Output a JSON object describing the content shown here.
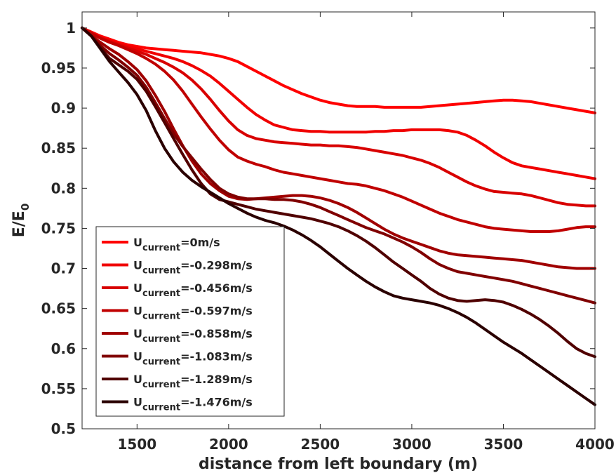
{
  "chart_data": {
    "type": "line",
    "xlabel": "distance from left boundary (m)",
    "ylabel": {
      "main": "E/E",
      "sub": "0"
    },
    "xlim": [
      1200,
      4000
    ],
    "ylim": [
      0.5,
      1.02
    ],
    "xticks": [
      1500,
      2000,
      2500,
      3000,
      3500,
      4000
    ],
    "yticks": [
      0.5,
      0.55,
      0.6,
      0.65,
      0.7,
      0.75,
      0.8,
      0.85,
      0.9,
      0.95,
      1
    ],
    "ytick_labels": [
      "0.5",
      "0.55",
      "0.6",
      "0.65",
      "0.7",
      "0.75",
      "0.8",
      "0.85",
      "0.9",
      "0.95",
      "1"
    ],
    "grid": false,
    "legend_position": "bottom-left",
    "x": [
      1200,
      1250,
      1300,
      1350,
      1400,
      1450,
      1500,
      1550,
      1600,
      1650,
      1700,
      1750,
      1800,
      1850,
      1900,
      1950,
      2000,
      2050,
      2100,
      2150,
      2200,
      2250,
      2300,
      2350,
      2400,
      2450,
      2500,
      2550,
      2600,
      2650,
      2700,
      2750,
      2800,
      2850,
      2900,
      2950,
      3000,
      3050,
      3100,
      3150,
      3200,
      3250,
      3300,
      3350,
      3400,
      3450,
      3500,
      3550,
      3600,
      3650,
      3700,
      3750,
      3800,
      3850,
      3900,
      3950,
      4000
    ],
    "series": [
      {
        "name": {
          "sym": "U",
          "sub": "current",
          "val": "=0m/s"
        },
        "color": "#ff0000",
        "values": [
          1.0,
          0.995,
          0.99,
          0.986,
          0.982,
          0.979,
          0.977,
          0.975,
          0.974,
          0.973,
          0.972,
          0.971,
          0.97,
          0.969,
          0.967,
          0.965,
          0.962,
          0.958,
          0.952,
          0.946,
          0.94,
          0.934,
          0.928,
          0.923,
          0.918,
          0.914,
          0.91,
          0.907,
          0.905,
          0.903,
          0.902,
          0.902,
          0.902,
          0.901,
          0.901,
          0.901,
          0.901,
          0.901,
          0.902,
          0.903,
          0.904,
          0.905,
          0.906,
          0.907,
          0.908,
          0.909,
          0.91,
          0.91,
          0.909,
          0.908,
          0.906,
          0.904,
          0.902,
          0.9,
          0.898,
          0.896,
          0.894
        ]
      },
      {
        "name": {
          "sym": "U",
          "sub": "current",
          "val": "=-0.298m/s"
        },
        "color": "#f00000",
        "values": [
          1.0,
          0.994,
          0.988,
          0.984,
          0.98,
          0.977,
          0.974,
          0.971,
          0.968,
          0.965,
          0.962,
          0.958,
          0.953,
          0.947,
          0.94,
          0.931,
          0.921,
          0.911,
          0.901,
          0.892,
          0.885,
          0.879,
          0.876,
          0.873,
          0.872,
          0.871,
          0.871,
          0.87,
          0.87,
          0.87,
          0.87,
          0.87,
          0.871,
          0.871,
          0.872,
          0.872,
          0.873,
          0.873,
          0.873,
          0.873,
          0.872,
          0.87,
          0.866,
          0.86,
          0.853,
          0.845,
          0.838,
          0.832,
          0.828,
          0.826,
          0.824,
          0.822,
          0.82,
          0.818,
          0.816,
          0.814,
          0.812
        ]
      },
      {
        "name": {
          "sym": "U",
          "sub": "current",
          "val": "=-0.456m/s"
        },
        "color": "#d80000",
        "values": [
          1.0,
          0.994,
          0.988,
          0.983,
          0.979,
          0.975,
          0.971,
          0.967,
          0.962,
          0.957,
          0.951,
          0.944,
          0.935,
          0.924,
          0.911,
          0.897,
          0.884,
          0.873,
          0.866,
          0.862,
          0.86,
          0.858,
          0.857,
          0.856,
          0.855,
          0.854,
          0.854,
          0.853,
          0.853,
          0.852,
          0.851,
          0.849,
          0.847,
          0.845,
          0.843,
          0.841,
          0.838,
          0.835,
          0.831,
          0.826,
          0.82,
          0.814,
          0.808,
          0.803,
          0.799,
          0.796,
          0.795,
          0.794,
          0.793,
          0.791,
          0.788,
          0.785,
          0.782,
          0.78,
          0.779,
          0.778,
          0.778
        ]
      },
      {
        "name": {
          "sym": "U",
          "sub": "current",
          "val": "=-0.597m/s"
        },
        "color": "#c00000",
        "values": [
          1.0,
          0.993,
          0.987,
          0.982,
          0.978,
          0.973,
          0.968,
          0.962,
          0.955,
          0.946,
          0.935,
          0.921,
          0.905,
          0.889,
          0.874,
          0.86,
          0.848,
          0.839,
          0.834,
          0.83,
          0.827,
          0.823,
          0.82,
          0.818,
          0.816,
          0.814,
          0.812,
          0.81,
          0.808,
          0.806,
          0.805,
          0.803,
          0.8,
          0.797,
          0.793,
          0.789,
          0.784,
          0.779,
          0.774,
          0.769,
          0.765,
          0.761,
          0.758,
          0.755,
          0.752,
          0.75,
          0.749,
          0.748,
          0.747,
          0.746,
          0.746,
          0.746,
          0.747,
          0.749,
          0.751,
          0.752,
          0.752
        ]
      },
      {
        "name": {
          "sym": "U",
          "sub": "current",
          "val": "=-0.858m/s"
        },
        "color": "#a00000",
        "values": [
          1.0,
          0.99,
          0.982,
          0.974,
          0.967,
          0.958,
          0.948,
          0.934,
          0.916,
          0.896,
          0.874,
          0.853,
          0.834,
          0.818,
          0.806,
          0.797,
          0.79,
          0.787,
          0.786,
          0.787,
          0.788,
          0.789,
          0.79,
          0.791,
          0.791,
          0.79,
          0.788,
          0.785,
          0.781,
          0.776,
          0.77,
          0.763,
          0.756,
          0.749,
          0.743,
          0.738,
          0.734,
          0.73,
          0.726,
          0.722,
          0.719,
          0.717,
          0.716,
          0.715,
          0.714,
          0.713,
          0.712,
          0.711,
          0.71,
          0.708,
          0.706,
          0.704,
          0.702,
          0.701,
          0.7,
          0.7,
          0.7
        ]
      },
      {
        "name": {
          "sym": "U",
          "sub": "current",
          "val": "=-1.083m/s"
        },
        "color": "#800000",
        "values": [
          1.0,
          0.99,
          0.978,
          0.968,
          0.96,
          0.951,
          0.941,
          0.926,
          0.907,
          0.887,
          0.868,
          0.852,
          0.838,
          0.824,
          0.811,
          0.8,
          0.793,
          0.789,
          0.787,
          0.787,
          0.787,
          0.786,
          0.786,
          0.785,
          0.783,
          0.78,
          0.776,
          0.771,
          0.766,
          0.761,
          0.756,
          0.751,
          0.747,
          0.743,
          0.738,
          0.733,
          0.727,
          0.72,
          0.712,
          0.705,
          0.7,
          0.696,
          0.694,
          0.692,
          0.69,
          0.688,
          0.686,
          0.684,
          0.681,
          0.678,
          0.675,
          0.672,
          0.669,
          0.666,
          0.663,
          0.66,
          0.657
        ]
      },
      {
        "name": {
          "sym": "U",
          "sub": "current",
          "val": "=-1.289m/s"
        },
        "color": "#500000",
        "values": [
          1.0,
          0.99,
          0.975,
          0.962,
          0.954,
          0.946,
          0.936,
          0.921,
          0.902,
          0.882,
          0.862,
          0.842,
          0.823,
          0.806,
          0.793,
          0.786,
          0.783,
          0.78,
          0.777,
          0.774,
          0.772,
          0.77,
          0.768,
          0.766,
          0.764,
          0.762,
          0.759,
          0.756,
          0.752,
          0.747,
          0.741,
          0.734,
          0.726,
          0.717,
          0.708,
          0.7,
          0.692,
          0.684,
          0.675,
          0.668,
          0.663,
          0.66,
          0.659,
          0.66,
          0.661,
          0.66,
          0.658,
          0.654,
          0.649,
          0.643,
          0.636,
          0.628,
          0.619,
          0.609,
          0.6,
          0.594,
          0.59
        ]
      },
      {
        "name": {
          "sym": "U",
          "sub": "current",
          "val": "=-1.476m/s"
        },
        "color": "#2a0000",
        "values": [
          1.0,
          0.99,
          0.974,
          0.958,
          0.945,
          0.932,
          0.917,
          0.897,
          0.872,
          0.85,
          0.833,
          0.82,
          0.81,
          0.802,
          0.795,
          0.788,
          0.781,
          0.775,
          0.769,
          0.764,
          0.76,
          0.757,
          0.753,
          0.748,
          0.742,
          0.735,
          0.727,
          0.718,
          0.709,
          0.7,
          0.692,
          0.684,
          0.677,
          0.671,
          0.666,
          0.663,
          0.661,
          0.659,
          0.657,
          0.654,
          0.65,
          0.645,
          0.639,
          0.632,
          0.624,
          0.616,
          0.608,
          0.601,
          0.594,
          0.586,
          0.578,
          0.57,
          0.562,
          0.554,
          0.546,
          0.538,
          0.53
        ]
      }
    ]
  }
}
